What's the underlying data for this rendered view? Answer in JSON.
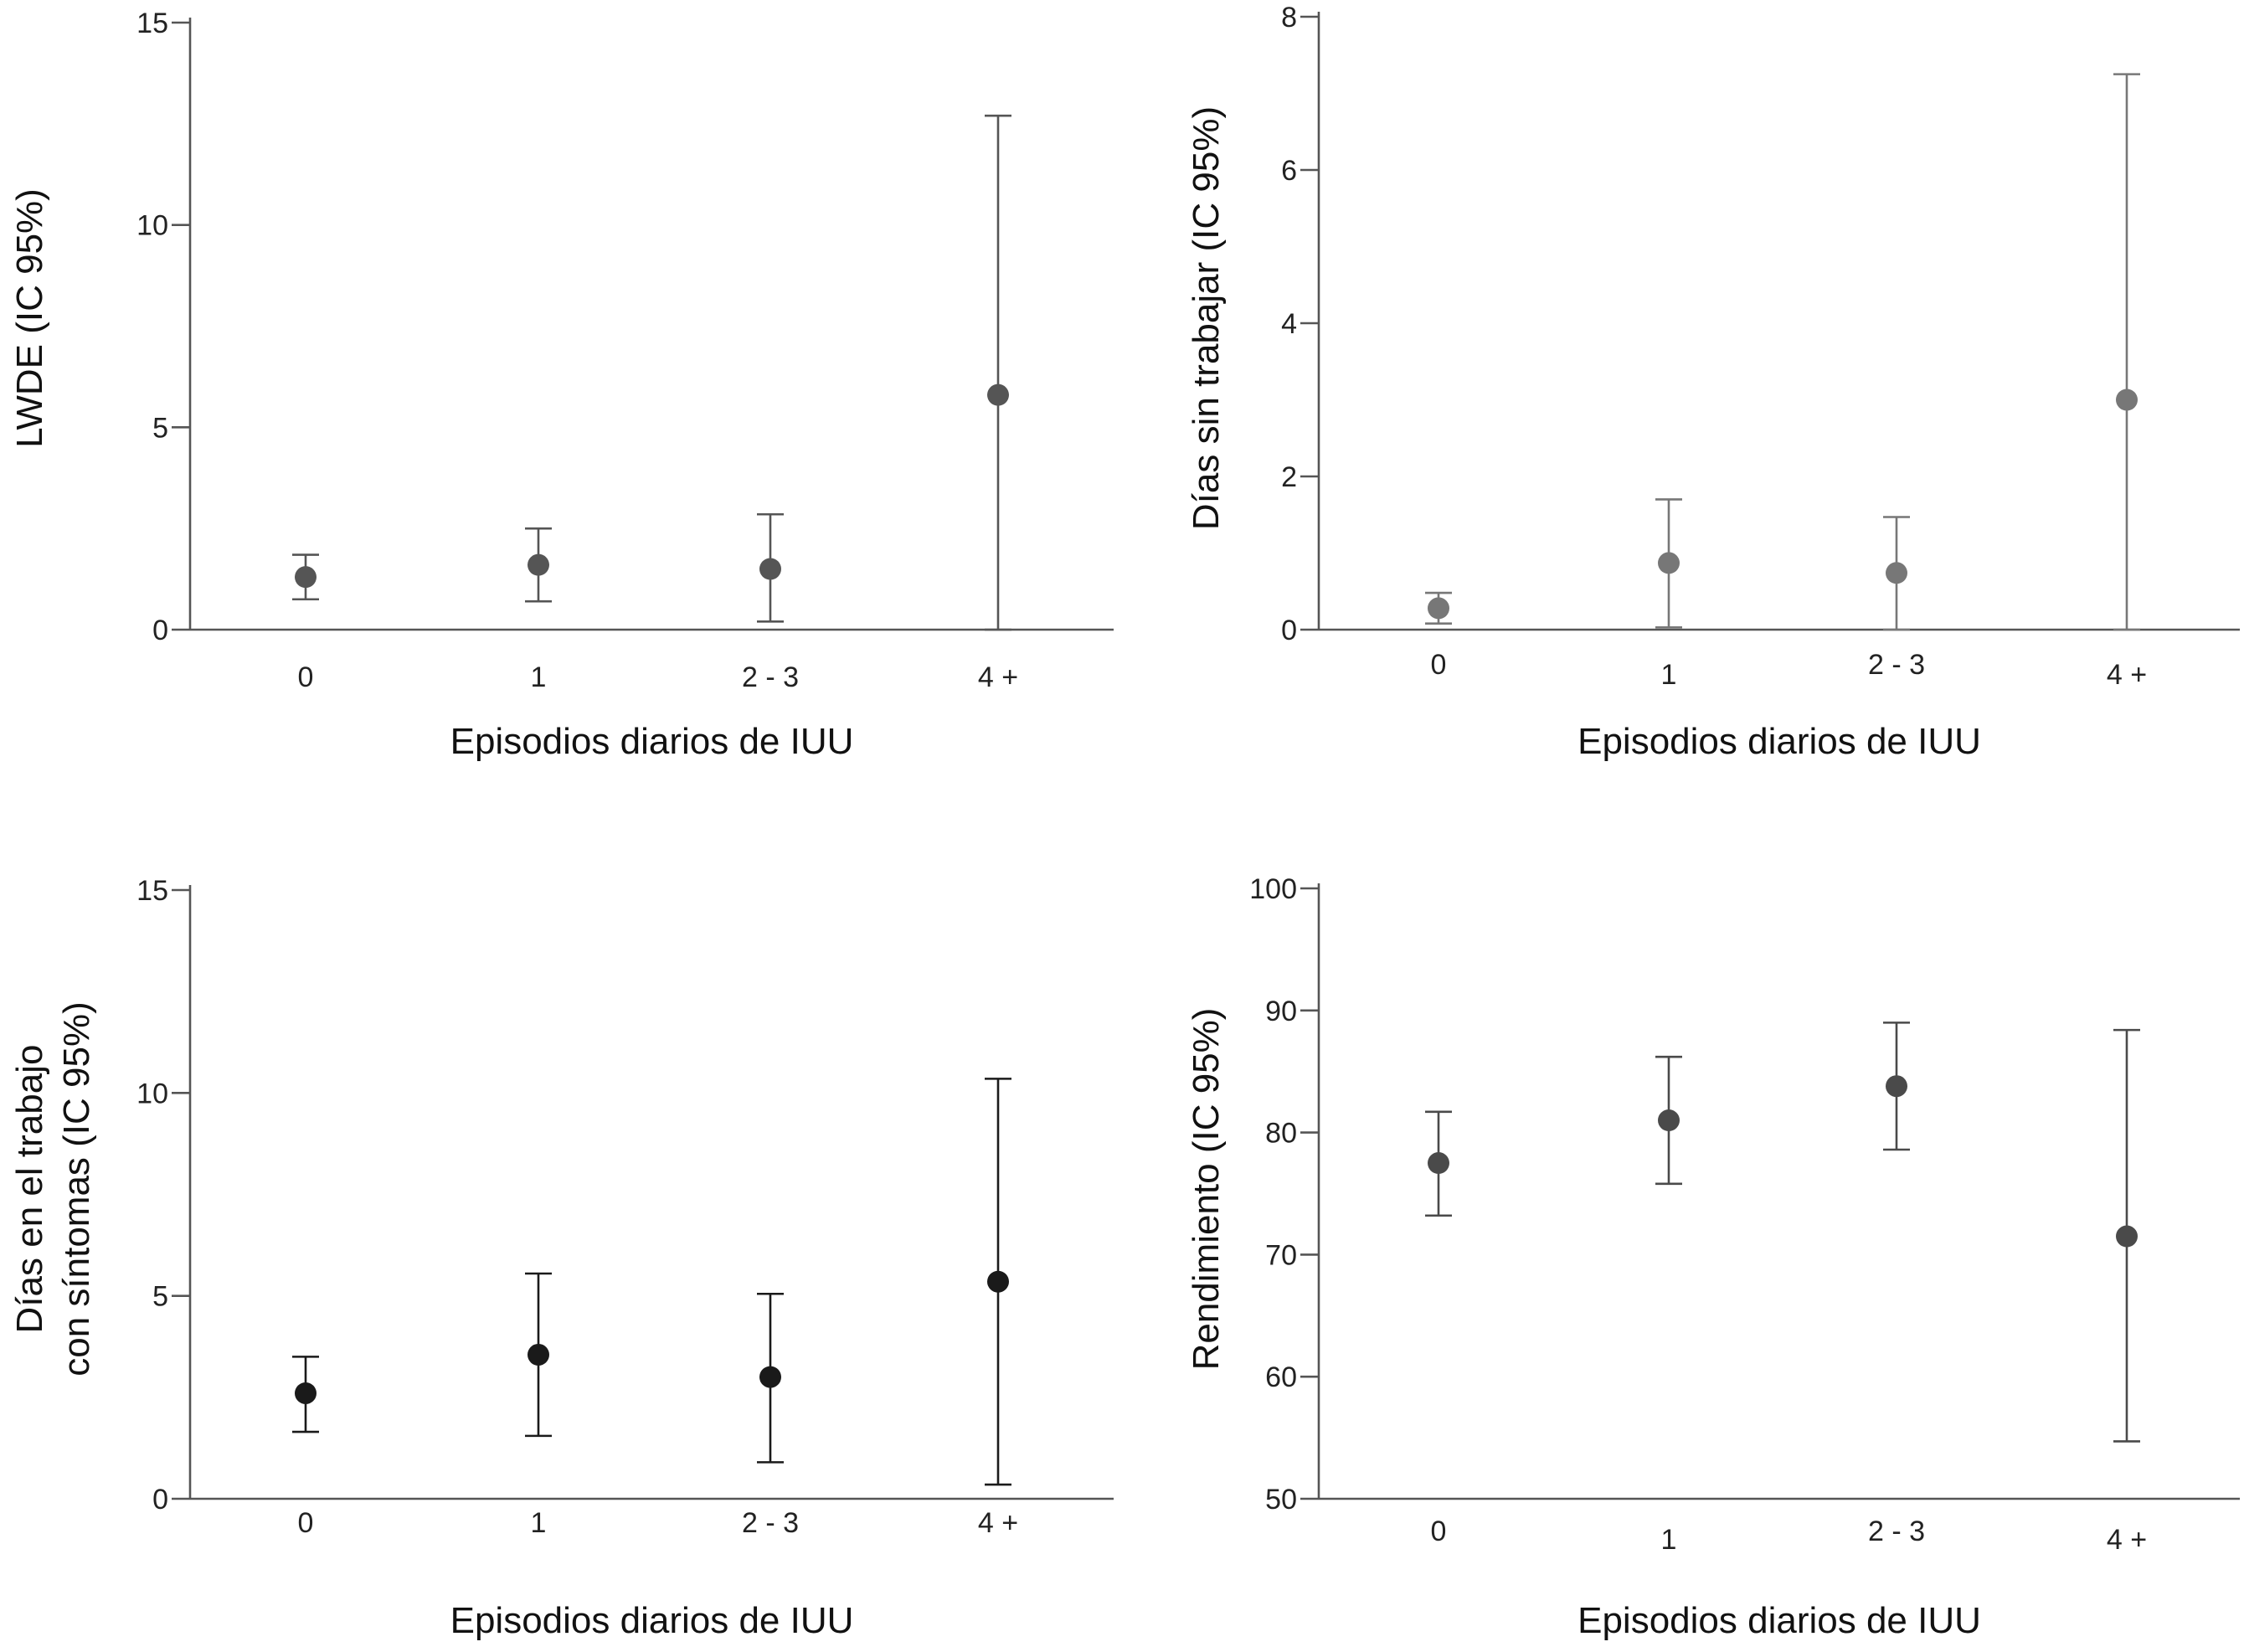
{
  "chart_data": [
    {
      "type": "scatter",
      "xlabel": "Episodios diarios de IUU",
      "ylabel": [
        "LWDE (IC 95%)"
      ],
      "categories": [
        "0",
        "1",
        "2 - 3",
        "4 +"
      ],
      "yticks": [
        "0",
        "5",
        "10",
        "15"
      ],
      "ylim": [
        0,
        15
      ],
      "values": [
        1.3,
        1.6,
        1.5,
        5.8
      ],
      "ci_lower": [
        0.75,
        0.7,
        0.2,
        0.0
      ],
      "ci_upper": [
        1.85,
        2.5,
        2.85,
        12.7
      ],
      "color": "#555555"
    },
    {
      "type": "scatter",
      "xlabel": "Episodios diarios de IUU",
      "ylabel": [
        "Días sin trabajar (IC 95%)"
      ],
      "categories": [
        "0",
        "1",
        "2 - 3",
        "4 +"
      ],
      "yticks": [
        "0",
        "2",
        "4",
        "6",
        "8"
      ],
      "ylim": [
        0,
        8
      ],
      "values": [
        0.28,
        0.87,
        0.74,
        3.0
      ],
      "ci_lower": [
        0.08,
        0.03,
        0.0,
        0.0
      ],
      "ci_upper": [
        0.48,
        1.7,
        1.47,
        7.25
      ],
      "color": "#777777"
    },
    {
      "type": "scatter",
      "xlabel": "Episodios diarios de IUU",
      "ylabel": [
        "Días en el trabajo",
        "con síntomas (IC 95%)"
      ],
      "categories": [
        "0",
        "1",
        "2 - 3",
        "4 +"
      ],
      "yticks": [
        "0",
        "5",
        "10",
        "15"
      ],
      "ylim": [
        0,
        15
      ],
      "values": [
        2.6,
        3.55,
        3.0,
        5.35
      ],
      "ci_lower": [
        1.65,
        1.55,
        0.9,
        0.35
      ],
      "ci_upper": [
        3.5,
        5.55,
        5.05,
        10.35
      ],
      "color": "#1a1a1a"
    },
    {
      "type": "scatter",
      "xlabel": "Episodios diarios de IUU",
      "ylabel": [
        "Rendimiento (IC 95%)"
      ],
      "categories": [
        "0",
        "1",
        "2 - 3",
        "4 +"
      ],
      "yticks": [
        "50",
        "60",
        "70",
        "80",
        "90",
        "100"
      ],
      "ylim": [
        50,
        100
      ],
      "values": [
        77.5,
        81.0,
        83.8,
        71.5
      ],
      "ci_lower": [
        73.2,
        75.8,
        78.6,
        54.7
      ],
      "ci_upper": [
        81.7,
        86.2,
        89.0,
        88.4
      ],
      "color": "#4a4a4a"
    }
  ]
}
